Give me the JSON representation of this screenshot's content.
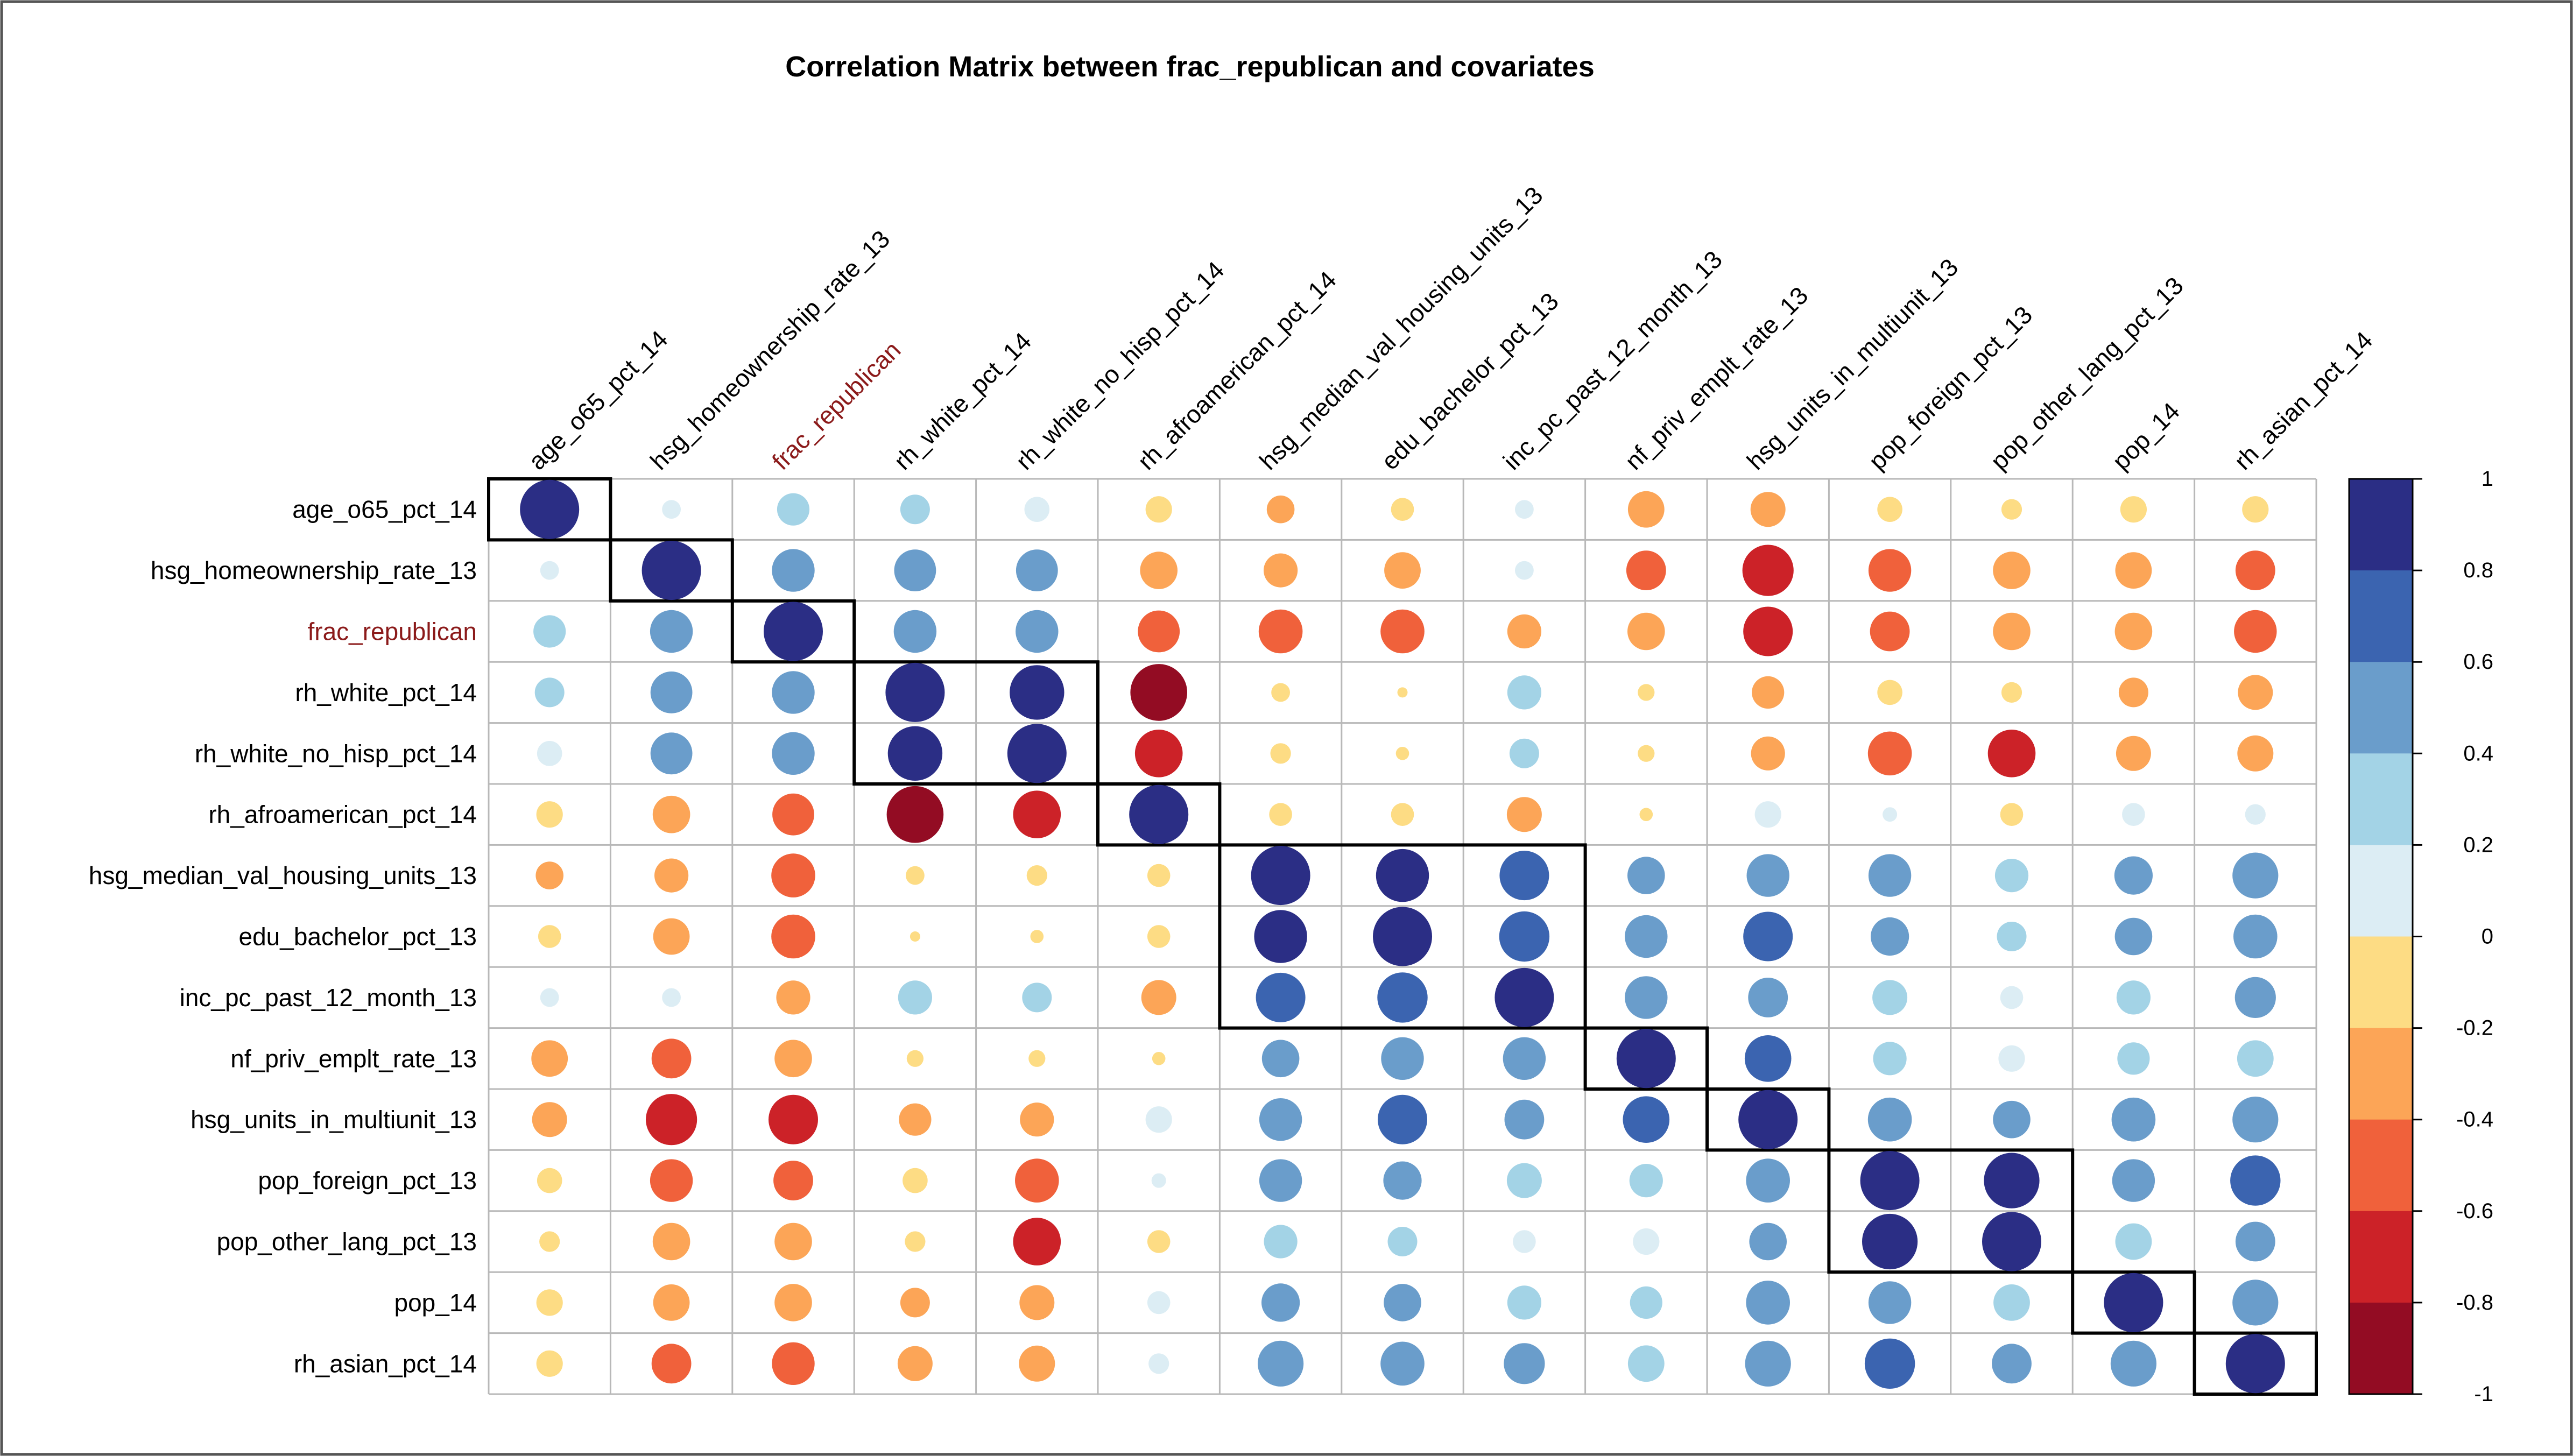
{
  "chart_data": {
    "type": "heatmap",
    "style": "correlation-matrix-circles",
    "title": "Correlation Matrix between frac_republican and covariates",
    "variables": [
      "age_o65_pct_14",
      "hsg_homeownership_rate_13",
      "frac_republican",
      "rh_white_pct_14",
      "rh_white_no_hisp_pct_14",
      "rh_afroamerican_pct_14",
      "hsg_median_val_housing_units_13",
      "edu_bachelor_pct_13",
      "inc_pc_past_12_month_13",
      "nf_priv_emplt_rate_13",
      "hsg_units_in_multiunit_13",
      "pop_foreign_pct_13",
      "pop_other_lang_pct_13",
      "pop_14",
      "rh_asian_pct_14"
    ],
    "highlighted_variable": "frac_republican",
    "highlight_color": "#8b1a1a",
    "matrix": [
      [
        1.0,
        0.1,
        0.3,
        0.25,
        0.18,
        -0.2,
        -0.22,
        -0.15,
        0.1,
        -0.38,
        -0.35,
        -0.18,
        -0.12,
        -0.2,
        -0.2
      ],
      [
        0.1,
        1.0,
        0.52,
        0.5,
        0.5,
        -0.4,
        -0.33,
        -0.38,
        0.1,
        -0.45,
        -0.75,
        -0.52,
        -0.4,
        -0.38,
        -0.45
      ],
      [
        0.3,
        0.52,
        1.0,
        0.52,
        0.52,
        -0.5,
        -0.55,
        -0.55,
        -0.33,
        -0.4,
        -0.7,
        -0.45,
        -0.4,
        -0.4,
        -0.52
      ],
      [
        0.25,
        0.5,
        0.52,
        1.0,
        0.85,
        -0.92,
        -0.1,
        -0.03,
        0.33,
        -0.08,
        -0.3,
        -0.18,
        -0.12,
        -0.25,
        -0.35
      ],
      [
        0.18,
        0.5,
        0.52,
        0.85,
        1.0,
        -0.65,
        -0.12,
        -0.05,
        0.25,
        -0.08,
        -0.33,
        -0.55,
        -0.65,
        -0.35,
        -0.37
      ],
      [
        -0.2,
        -0.4,
        -0.5,
        -0.92,
        -0.65,
        1.0,
        -0.15,
        -0.15,
        -0.35,
        -0.05,
        0.2,
        0.06,
        -0.15,
        0.15,
        0.12
      ],
      [
        -0.22,
        -0.33,
        -0.55,
        -0.1,
        -0.12,
        -0.15,
        1.0,
        0.8,
        0.7,
        0.4,
        0.52,
        0.52,
        0.32,
        0.42,
        0.6
      ],
      [
        -0.15,
        -0.38,
        -0.55,
        -0.03,
        -0.05,
        -0.15,
        0.8,
        1.0,
        0.72,
        0.52,
        0.7,
        0.42,
        0.25,
        0.4,
        0.55
      ],
      [
        0.1,
        0.1,
        -0.33,
        0.33,
        0.25,
        -0.35,
        0.7,
        0.72,
        1.0,
        0.52,
        0.45,
        0.35,
        0.15,
        0.33,
        0.48
      ],
      [
        -0.38,
        -0.45,
        -0.4,
        -0.08,
        -0.08,
        -0.05,
        0.4,
        0.52,
        0.52,
        1.0,
        0.62,
        0.32,
        0.2,
        0.3,
        0.38
      ],
      [
        -0.35,
        -0.75,
        -0.7,
        -0.3,
        -0.33,
        0.2,
        0.52,
        0.7,
        0.45,
        0.62,
        1.0,
        0.55,
        0.4,
        0.55,
        0.6
      ],
      [
        -0.18,
        -0.52,
        -0.45,
        -0.18,
        -0.55,
        0.06,
        0.52,
        0.42,
        0.35,
        0.32,
        0.55,
        1.0,
        0.88,
        0.52,
        0.72
      ],
      [
        -0.12,
        -0.4,
        -0.4,
        -0.12,
        -0.65,
        -0.15,
        0.32,
        0.25,
        0.15,
        0.2,
        0.4,
        0.88,
        1.0,
        0.38,
        0.45
      ],
      [
        -0.2,
        -0.38,
        -0.4,
        -0.25,
        -0.35,
        0.15,
        0.42,
        0.4,
        0.33,
        0.3,
        0.55,
        0.52,
        0.38,
        1.0,
        0.6
      ],
      [
        -0.2,
        -0.45,
        -0.52,
        -0.35,
        -0.37,
        0.12,
        0.6,
        0.55,
        0.48,
        0.38,
        0.6,
        0.72,
        0.45,
        0.6,
        1.0
      ]
    ],
    "clusters": [
      [
        "age_o65_pct_14"
      ],
      [
        "hsg_homeownership_rate_13"
      ],
      [
        "frac_republican"
      ],
      [
        "rh_white_pct_14",
        "rh_white_no_hisp_pct_14"
      ],
      [
        "rh_afroamerican_pct_14"
      ],
      [
        "hsg_median_val_housing_units_13",
        "edu_bachelor_pct_13",
        "inc_pc_past_12_month_13"
      ],
      [
        "nf_priv_emplt_rate_13"
      ],
      [
        "hsg_units_in_multiunit_13"
      ],
      [
        "pop_foreign_pct_13",
        "pop_other_lang_pct_13"
      ],
      [
        "pop_14"
      ],
      [
        "rh_asian_pct_14"
      ]
    ],
    "colorbar": {
      "ticks": [
        "1",
        "0.8",
        "0.6",
        "0.4",
        "0.2",
        "0",
        "-0.2",
        "-0.4",
        "-0.6",
        "-0.8",
        "-1"
      ],
      "range": [
        -1,
        1
      ],
      "colors_high_to_low": [
        "#2b2e85",
        "#3b64b0",
        "#6a9dcb",
        "#a3d3e6",
        "#dcedf4",
        "#fddc84",
        "#fca557",
        "#f0613b",
        "#cc2228",
        "#930c23"
      ]
    },
    "xlabel": "",
    "ylabel": "",
    "grid": true
  }
}
